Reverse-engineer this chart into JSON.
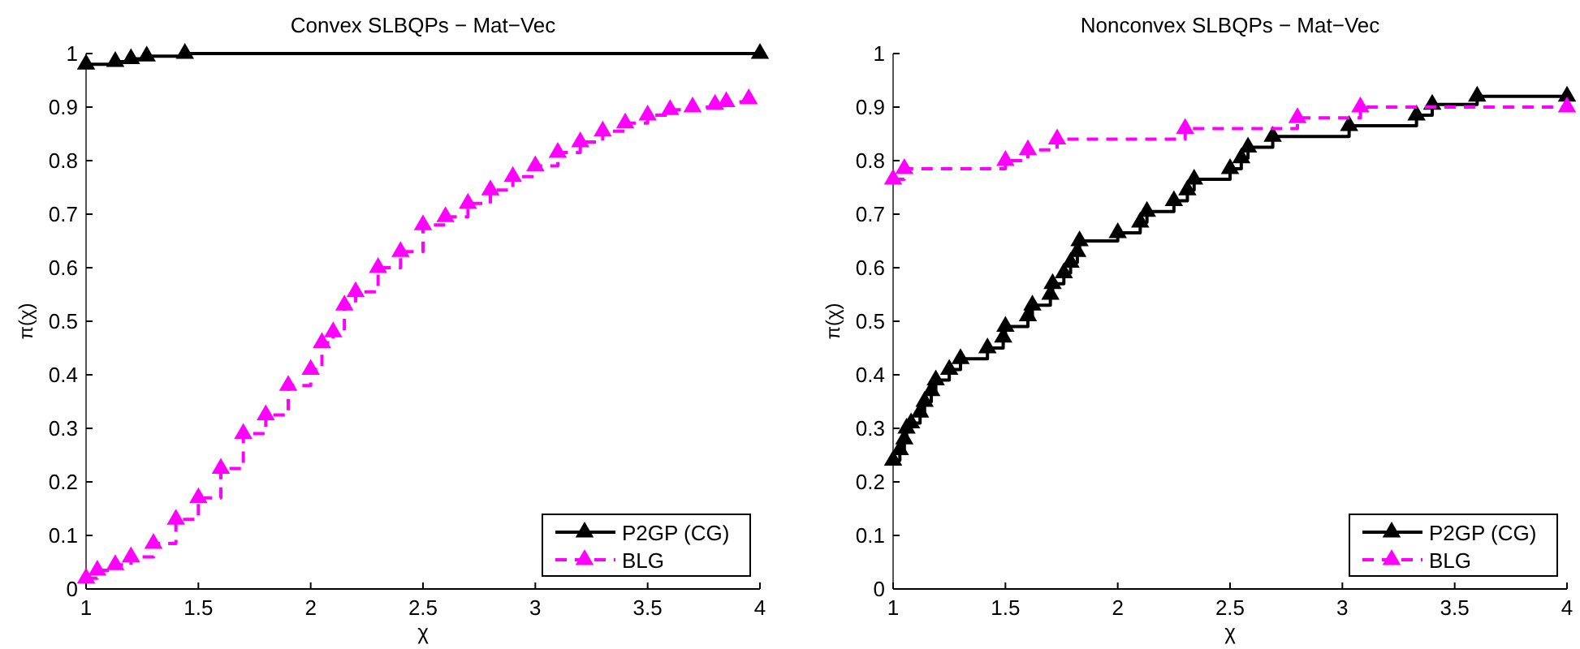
{
  "chart_data": [
    {
      "type": "step",
      "title": "Convex SLBQPs − Mat−Vec",
      "xlabel": "χ",
      "ylabel": "π(χ)",
      "xlim": [
        1,
        4
      ],
      "ylim": [
        0,
        1
      ],
      "xticks": [
        1,
        1.5,
        2,
        2.5,
        3,
        3.5,
        4
      ],
      "yticks": [
        0,
        0.1,
        0.2,
        0.3,
        0.4,
        0.5,
        0.6,
        0.7,
        0.8,
        0.9,
        1
      ],
      "grid": false,
      "legend": "bottom right",
      "marker": "triangle",
      "series": [
        {
          "name": "P2GP (CG)",
          "color": "#000000",
          "line_style": "solid",
          "x": [
            1,
            1.13,
            1.2,
            1.27,
            1.44,
            4
          ],
          "values": [
            0.98,
            0.985,
            0.99,
            0.995,
            1,
            1
          ]
        },
        {
          "name": "BLG",
          "color": "#ff00ff",
          "line_style": "dashed",
          "x": [
            1,
            1.05,
            1.13,
            1.2,
            1.3,
            1.4,
            1.5,
            1.6,
            1.7,
            1.8,
            1.9,
            2,
            2.05,
            2.1,
            2.15,
            2.2,
            2.3,
            2.4,
            2.5,
            2.6,
            2.7,
            2.8,
            2.9,
            3,
            3.1,
            3.2,
            3.3,
            3.4,
            3.5,
            3.6,
            3.7,
            3.8,
            3.85,
            3.95
          ],
          "values": [
            0.02,
            0.035,
            0.045,
            0.06,
            0.085,
            0.13,
            0.17,
            0.225,
            0.29,
            0.325,
            0.38,
            0.41,
            0.46,
            0.48,
            0.53,
            0.555,
            0.6,
            0.63,
            0.68,
            0.695,
            0.72,
            0.745,
            0.77,
            0.79,
            0.815,
            0.835,
            0.855,
            0.87,
            0.885,
            0.895,
            0.9,
            0.905,
            0.91,
            0.915
          ]
        }
      ]
    },
    {
      "type": "step",
      "title": "Nonconvex SLBQPs − Mat−Vec",
      "xlabel": "χ",
      "ylabel": "π(χ)",
      "xlim": [
        1,
        4
      ],
      "ylim": [
        0,
        1
      ],
      "xticks": [
        1,
        1.5,
        2,
        2.5,
        3,
        3.5,
        4
      ],
      "yticks": [
        0,
        0.1,
        0.2,
        0.3,
        0.4,
        0.5,
        0.6,
        0.7,
        0.8,
        0.9,
        1
      ],
      "grid": false,
      "legend": "bottom right",
      "marker": "triangle",
      "series": [
        {
          "name": "P2GP (CG)",
          "color": "#000000",
          "line_style": "solid",
          "x": [
            1,
            1.03,
            1.05,
            1.06,
            1.08,
            1.12,
            1.14,
            1.17,
            1.19,
            1.25,
            1.3,
            1.42,
            1.49,
            1.5,
            1.6,
            1.62,
            1.7,
            1.71,
            1.76,
            1.79,
            1.82,
            1.83,
            2,
            2.1,
            2.13,
            2.25,
            2.31,
            2.34,
            2.5,
            2.55,
            2.58,
            2.69,
            3.03,
            3.33,
            3.4,
            3.6,
            4
          ],
          "values": [
            0.24,
            0.26,
            0.28,
            0.3,
            0.31,
            0.33,
            0.35,
            0.37,
            0.39,
            0.41,
            0.43,
            0.45,
            0.47,
            0.49,
            0.51,
            0.53,
            0.55,
            0.57,
            0.59,
            0.61,
            0.63,
            0.65,
            0.665,
            0.685,
            0.705,
            0.725,
            0.745,
            0.765,
            0.785,
            0.805,
            0.825,
            0.845,
            0.865,
            0.885,
            0.905,
            0.92,
            0.92
          ]
        },
        {
          "name": "BLG",
          "color": "#ff00ff",
          "line_style": "dashed",
          "x": [
            1,
            1.05,
            1.5,
            1.6,
            1.73,
            2.3,
            2.8,
            3.08,
            4
          ],
          "values": [
            0.765,
            0.785,
            0.8,
            0.82,
            0.84,
            0.86,
            0.88,
            0.9,
            0.9
          ]
        }
      ]
    }
  ]
}
